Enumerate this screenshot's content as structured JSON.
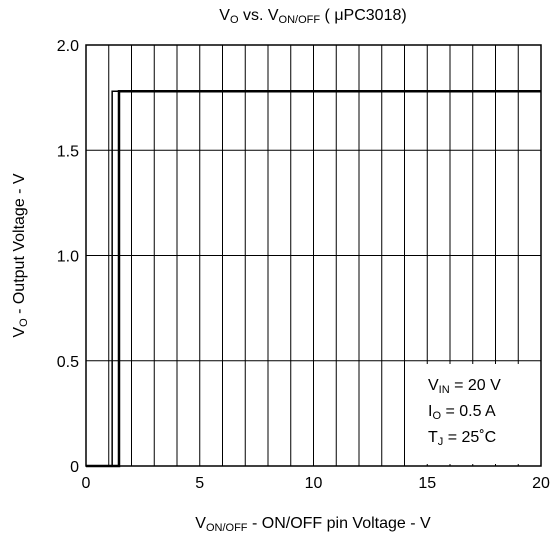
{
  "chart_data": {
    "type": "line",
    "title": [
      "V",
      "O",
      " vs. V",
      "ON/OFF",
      " ( μPC3018)"
    ],
    "x_label": [
      "V",
      "ON/OFF",
      " - ON/OFF pin Voltage - V"
    ],
    "y_label": [
      "V",
      "O",
      " - Output Voltage - V"
    ],
    "annotations": [
      [
        "V",
        "IN",
        " = 20 V"
      ],
      [
        "I",
        "O",
        " = 0.5 A"
      ],
      [
        "T",
        "J",
        " = 25˚C"
      ]
    ],
    "xlim": [
      0,
      20
    ],
    "ylim": [
      0,
      2
    ],
    "xticks": [
      0,
      5,
      10,
      15,
      20
    ],
    "yticks": [
      0,
      0.5,
      {
        "value": 1,
        "label": "1.0"
      },
      1.5,
      {
        "value": 2,
        "label": "2.0"
      }
    ],
    "xgrid_step": 1,
    "grid": true,
    "series": [
      {
        "color": "#000000",
        "width": 1.5,
        "x": [
          0,
          1.15,
          1.15,
          20
        ],
        "values": [
          0,
          0,
          1.78,
          1.78
        ]
      },
      {
        "color": "#000000",
        "width": 2.5,
        "x": [
          0,
          1.45,
          1.45,
          20
        ],
        "values": [
          0,
          0,
          1.78,
          1.78
        ]
      }
    ]
  }
}
